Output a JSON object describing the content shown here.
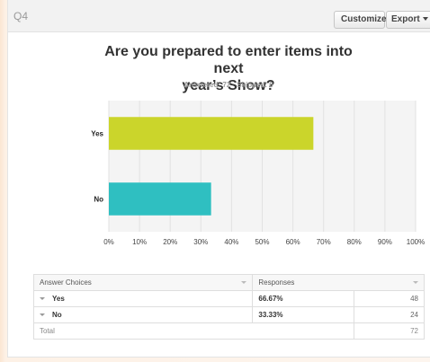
{
  "header": {
    "question_number": "Q4",
    "customize_label": "Customize",
    "export_label": "Export"
  },
  "question": {
    "title_line1": "Are you prepared to enter items into next",
    "title_line2": "year’s Show?",
    "answered_text": "Answered: 72",
    "skipped_text": "Skipped: 0"
  },
  "chart_data": {
    "type": "bar",
    "orientation": "horizontal",
    "categories": [
      "Yes",
      "No"
    ],
    "values": [
      66.67,
      33.33
    ],
    "xlim": [
      0,
      100
    ],
    "x_ticks": [
      "0%",
      "10%",
      "20%",
      "30%",
      "40%",
      "50%",
      "60%",
      "70%",
      "80%",
      "90%",
      "100%"
    ],
    "grid": true,
    "colors": [
      "#cbd52b",
      "#2fbfc1"
    ]
  },
  "table": {
    "headers": [
      "Answer Choices",
      "Responses"
    ],
    "rows": [
      {
        "choice": "Yes",
        "percent": "66.67%",
        "count": "48"
      },
      {
        "choice": "No",
        "percent": "33.33%",
        "count": "24"
      }
    ],
    "total_label": "Total",
    "total_count": "72"
  }
}
